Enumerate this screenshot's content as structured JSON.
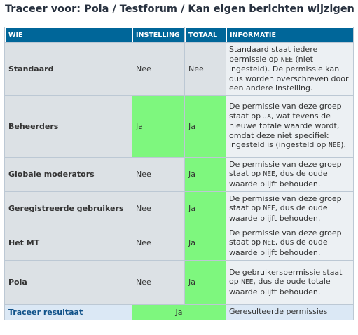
{
  "page": {
    "title": "Traceer voor: Pola / Testforum / Kan eigen berichten wijzigen"
  },
  "table": {
    "headers": {
      "wie": "WIE",
      "instelling": "INSTELLING",
      "totaal": "TOTAAL",
      "informatie": "INFORMATIE"
    },
    "rows": [
      {
        "who": "Standaard",
        "setting": "Nee",
        "total": "Nee",
        "info": [
          {
            "t": "Standaard staat iedere permissie op "
          },
          {
            "t": "NEE",
            "mono": true
          },
          {
            "t": " (niet ingesteld). De permissie kan dus worden overschreven door een andere instelling."
          }
        ]
      },
      {
        "who": "Beheerders",
        "setting": "Ja",
        "total": "Ja",
        "info": [
          {
            "t": "De permissie van deze groep staat op "
          },
          {
            "t": "JA",
            "mono": true
          },
          {
            "t": ", wat tevens de nieuwe totale waarde wordt, omdat deze niet specifiek ingesteld is (ingesteld op "
          },
          {
            "t": "NEE",
            "mono": true
          },
          {
            "t": ")."
          }
        ]
      },
      {
        "who": "Globale moderators",
        "setting": "Nee",
        "total": "Ja",
        "info": [
          {
            "t": "De permissie van deze groep staat op "
          },
          {
            "t": "NEE",
            "mono": true
          },
          {
            "t": ", dus de oude waarde blijft behouden."
          }
        ]
      },
      {
        "who": "Geregistreerde gebruikers",
        "setting": "Nee",
        "total": "Ja",
        "info": [
          {
            "t": "De permissie van deze groep staat op "
          },
          {
            "t": "NEE",
            "mono": true
          },
          {
            "t": ", dus de oude waarde blijft behouden."
          }
        ]
      },
      {
        "who": "Het MT",
        "setting": "Nee",
        "total": "Ja",
        "info": [
          {
            "t": "De permissie van deze groep staat op "
          },
          {
            "t": "NEE",
            "mono": true
          },
          {
            "t": ", dus de oude waarde blijft behouden."
          }
        ]
      },
      {
        "who": "Pola",
        "setting": "Nee",
        "total": "Ja",
        "info": [
          {
            "t": "De gebruikerspermissie staat op "
          },
          {
            "t": "NEE",
            "mono": true
          },
          {
            "t": ", dus de oude totale waarde blijft behouden."
          }
        ]
      }
    ],
    "result": {
      "label": "Traceer resultaat",
      "value": "Ja",
      "info": "Geresulteerde permissies"
    }
  },
  "colors": {
    "header_bg": "#006699",
    "yes_bg": "#7ef77e",
    "row_bg": "#dce1e5",
    "info_bg": "#ecf0f3",
    "result_bg": "#dbe8f5"
  }
}
